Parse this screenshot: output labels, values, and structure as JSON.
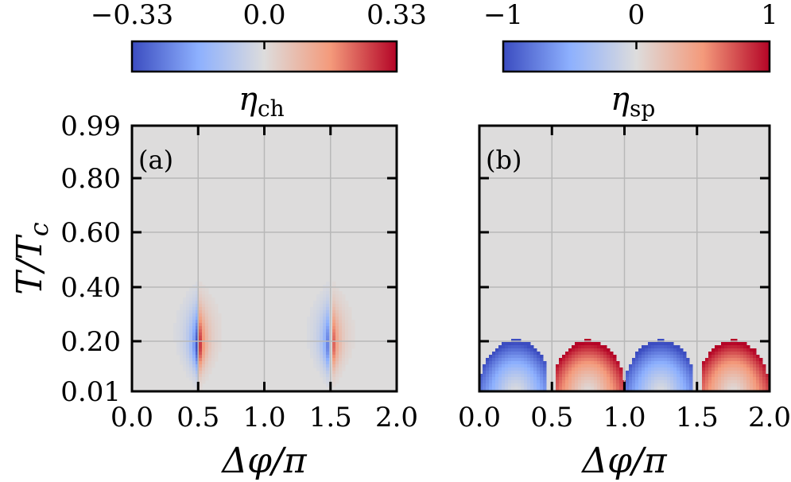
{
  "chart_data": [
    {
      "type": "heatmap",
      "panel_label": "(a)",
      "xlabel": "Δφ/π",
      "ylabel": "T/T",
      "ylabel_sub": "c",
      "xlim": [
        0.0,
        2.0
      ],
      "x_ticks": [
        "0.0",
        "0.5",
        "1.0",
        "1.5",
        "2.0"
      ],
      "y_ticks": [
        "0.01",
        "0.20",
        "0.40",
        "0.60",
        "0.80",
        "0.99"
      ],
      "grid": true,
      "colorbar": {
        "label": "η",
        "label_sub": "ch",
        "placement": "top",
        "vmin": -0.33,
        "vmax": 0.33,
        "ticks": [
          "−0.33",
          "0.0",
          "0.33"
        ],
        "colormap": "coolwarm"
      },
      "description_values": {
        "negative_peak": {
          "x": 0.47,
          "y": 0.18,
          "value": -0.33
        },
        "positive_peak": {
          "x": 0.53,
          "y": 0.18,
          "value": 0.33
        },
        "negative_peak_2": {
          "x": 1.47,
          "y": 0.18,
          "value": -0.33
        },
        "positive_peak_2": {
          "x": 1.53,
          "y": 0.18,
          "value": 0.33
        }
      }
    },
    {
      "type": "heatmap",
      "panel_label": "(b)",
      "xlabel": "Δφ/π",
      "xlim": [
        0.0,
        2.0
      ],
      "x_ticks": [
        "0.0",
        "0.5",
        "1.0",
        "1.5",
        "2.0"
      ],
      "grid": true,
      "colorbar": {
        "label": "η",
        "label_sub": "sp",
        "placement": "top",
        "vmin": -1,
        "vmax": 1,
        "ticks": [
          "−1",
          "0",
          "1"
        ],
        "colormap": "coolwarm"
      },
      "description_values": {
        "negative_lobes_x": [
          0.25,
          1.25
        ],
        "positive_lobes_x": [
          0.75,
          1.75
        ],
        "lobe_max_y": 0.2,
        "peak_value": 1
      }
    }
  ]
}
